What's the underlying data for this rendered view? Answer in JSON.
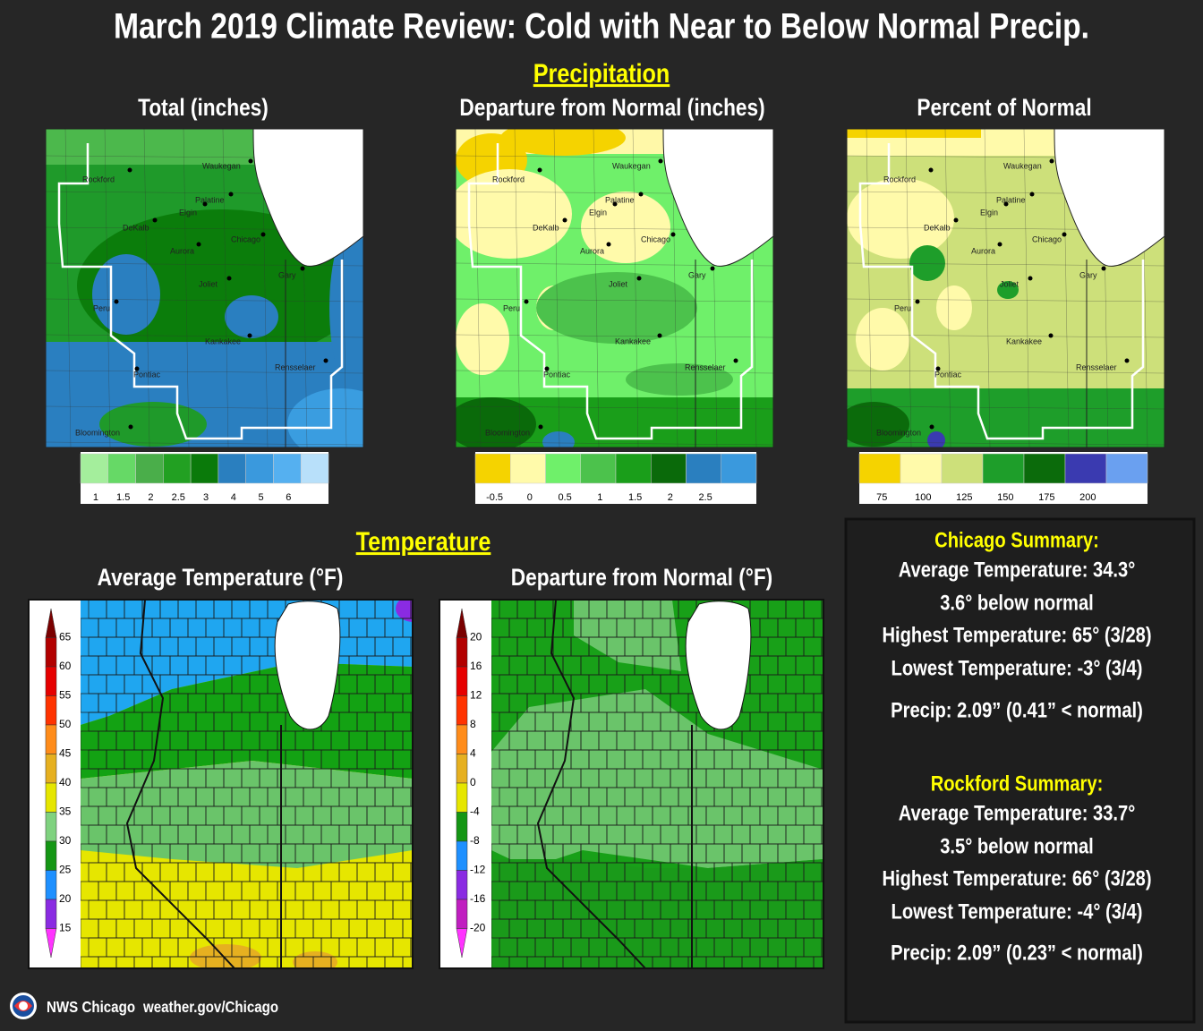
{
  "title": "March 2019 Climate Review: Cold with Near to Below Normal Precip.",
  "cities": [
    "Rockford",
    "Waukegan",
    "Palatine",
    "Elgin",
    "DeKalb",
    "Chicago",
    "Aurora",
    "Gary",
    "Joliet",
    "Peru",
    "Kankakee",
    "Rensselaer",
    "Pontiac",
    "Bloomington"
  ],
  "precipitation": {
    "heading": "Precipitation",
    "panels": [
      {
        "title": "Total (inches)",
        "legend": {
          "colors": [
            "#a4ee9c",
            "#66d966",
            "#4aae4a",
            "#22a022",
            "#0a7a0a",
            "#2a7fbf",
            "#3a99dd",
            "#55b0f0",
            "#b8e0fa"
          ],
          "labels": [
            1,
            1.5,
            2,
            2.5,
            3,
            4,
            5,
            6
          ]
        }
      },
      {
        "title": "Departure from Normal (inches)",
        "legend": {
          "colors": [
            "#f5d300",
            "#fffaaa",
            "#6ff06a",
            "#4cc24c",
            "#1a9e1a",
            "#0a6a0a",
            "#2a7fbf",
            "#3a99dd"
          ],
          "labels": [
            -0.5,
            0,
            0.5,
            1,
            1.5,
            2,
            2.5
          ]
        }
      },
      {
        "title": "Percent of Normal",
        "legend": {
          "colors": [
            "#f5d300",
            "#fffaaa",
            "#cde07a",
            "#1e9e2a",
            "#0b6b0b",
            "#3a3ab0",
            "#6aa0f0"
          ],
          "labels": [
            75,
            100,
            125,
            150,
            175,
            200
          ]
        }
      }
    ]
  },
  "temperature": {
    "heading": "Temperature",
    "panels": [
      {
        "title": "Average Temperature (°F)",
        "legend": {
          "colors": [
            "#7a0000",
            "#b20000",
            "#e60000",
            "#ff3300",
            "#ff8c1a",
            "#e6b020",
            "#e6e600",
            "#7fd27f",
            "#149614",
            "#1e90ff",
            "#8a2be2",
            "#ff33ff"
          ],
          "labels": [
            65,
            60,
            55,
            50,
            45,
            40,
            35,
            30,
            25,
            20,
            15
          ]
        }
      },
      {
        "title": "Departure from Normal (°F)",
        "legend": {
          "colors": [
            "#7a0000",
            "#b20000",
            "#e60000",
            "#ff3300",
            "#ff8c1a",
            "#e6b020",
            "#e6e600",
            "#149614",
            "#1e90ff",
            "#8a2be2",
            "#c01ec0",
            "#ff33ff"
          ],
          "labels": [
            20,
            16,
            12,
            8,
            4,
            0,
            -4,
            -8,
            -12,
            -16,
            -20
          ]
        }
      }
    ]
  },
  "summaries": [
    {
      "heading": "Chicago Summary:",
      "lines": [
        "Average Temperature: 34.3°",
        "3.6° below normal",
        "Highest Temperature: 65° (3/28)",
        "Lowest Temperature: -3° (3/4)",
        "Precip: 2.09”  (0.41” < normal)"
      ]
    },
    {
      "heading": "Rockford Summary:",
      "lines": [
        "Average Temperature: 33.7°",
        "3.5° below normal",
        "Highest Temperature: 66° (3/28)",
        "Lowest Temperature: -4° (3/4)",
        "Precip: 2.09”  (0.23” < normal)"
      ]
    }
  ],
  "footer": {
    "org": "NWS Chicago",
    "url": "weather.gov/Chicago"
  }
}
